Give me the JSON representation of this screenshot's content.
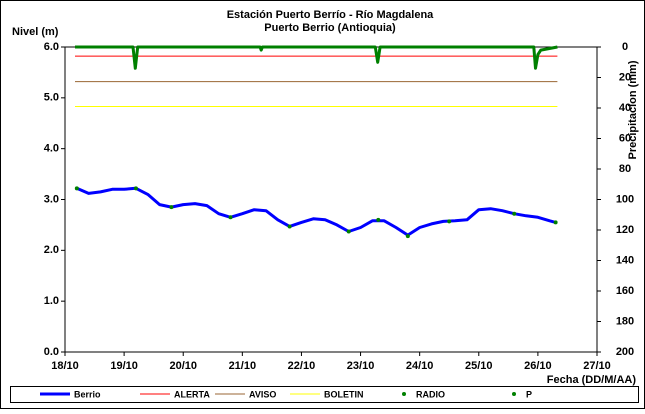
{
  "chart_data": {
    "type": "line",
    "title": "Estación Puerto Berrío - Río Magdalena",
    "subtitle": "Puerto Berrio (Antioquia)",
    "ylabel": "Nivel (m)",
    "y2label": "Precipitacion (mm)",
    "xlabel": "Fecha (DD/M/AA)",
    "xlim": [
      18,
      27
    ],
    "xticks": [
      {
        "value": 18,
        "label": "18/10"
      },
      {
        "value": 19,
        "label": "19/10"
      },
      {
        "value": 20,
        "label": "20/10"
      },
      {
        "value": 21,
        "label": "21/10"
      },
      {
        "value": 22,
        "label": "22/10"
      },
      {
        "value": 23,
        "label": "23/10"
      },
      {
        "value": 24,
        "label": "24/10"
      },
      {
        "value": 25,
        "label": "25/10"
      },
      {
        "value": 26,
        "label": "26/10"
      },
      {
        "value": 27,
        "label": "27/10"
      }
    ],
    "ylim": [
      0,
      6
    ],
    "yticks": [
      {
        "value": 0,
        "label": "0.0"
      },
      {
        "value": 1,
        "label": "1.0"
      },
      {
        "value": 2,
        "label": "2.0"
      },
      {
        "value": 3,
        "label": "3.0"
      },
      {
        "value": 4,
        "label": "4.0"
      },
      {
        "value": 5,
        "label": "5.0"
      },
      {
        "value": 6,
        "label": "6.0"
      }
    ],
    "y2lim": [
      200,
      0
    ],
    "y2ticks": [
      0,
      20,
      40,
      60,
      80,
      100,
      120,
      140,
      160,
      180,
      200
    ],
    "series": [
      {
        "name": "Berrio",
        "color": "#0000ff",
        "width": 3,
        "x": [
          18.2,
          18.4,
          18.6,
          18.8,
          19.0,
          19.2,
          19.4,
          19.6,
          19.8,
          20.0,
          20.2,
          20.4,
          20.6,
          20.8,
          21.0,
          21.2,
          21.4,
          21.6,
          21.8,
          22.0,
          22.2,
          22.4,
          22.6,
          22.8,
          23.0,
          23.2,
          23.4,
          23.6,
          23.8,
          24.0,
          24.2,
          24.4,
          24.6,
          24.8,
          25.0,
          25.2,
          25.4,
          25.6,
          25.8,
          26.0,
          26.2,
          26.3
        ],
        "values": [
          3.22,
          3.12,
          3.15,
          3.2,
          3.2,
          3.22,
          3.1,
          2.9,
          2.85,
          2.9,
          2.92,
          2.88,
          2.72,
          2.65,
          2.72,
          2.8,
          2.78,
          2.6,
          2.47,
          2.55,
          2.62,
          2.6,
          2.5,
          2.37,
          2.45,
          2.58,
          2.58,
          2.45,
          2.3,
          2.45,
          2.52,
          2.57,
          2.58,
          2.6,
          2.8,
          2.82,
          2.78,
          2.72,
          2.68,
          2.65,
          2.58,
          2.55
        ]
      },
      {
        "name": "ALERTA",
        "color": "#ff0000",
        "width": 1,
        "x": [
          18.17,
          26.33
        ],
        "values": [
          5.82,
          5.82
        ]
      },
      {
        "name": "AVISO",
        "color": "#996633",
        "width": 1,
        "x": [
          18.17,
          26.33
        ],
        "values": [
          5.32,
          5.32
        ]
      },
      {
        "name": "BOLETIN",
        "color": "#ffff00",
        "width": 1,
        "x": [
          18.17,
          26.33
        ],
        "values": [
          4.83,
          4.83
        ]
      },
      {
        "name": "RADIO",
        "color": "#008000",
        "marker": "dot",
        "x": [
          18.2,
          19.2,
          19.8,
          20.8,
          21.8,
          22.8,
          23.3,
          23.8,
          24.5,
          25.6,
          26.3
        ],
        "values": [
          3.22,
          3.22,
          2.85,
          2.65,
          2.47,
          2.37,
          2.6,
          2.28,
          2.57,
          2.72,
          2.55
        ]
      },
      {
        "name": "P",
        "color": "#008000",
        "width": 3,
        "axis": "y2",
        "x": [
          18.17,
          19.15,
          19.19,
          19.23,
          21.3,
          21.32,
          21.34,
          23.25,
          23.29,
          23.33,
          25.93,
          25.96,
          26.0,
          26.05,
          26.33
        ],
        "values": [
          0,
          0,
          14,
          0,
          0,
          2,
          0,
          0,
          10,
          0,
          0,
          14,
          5,
          2,
          0
        ]
      }
    ]
  }
}
